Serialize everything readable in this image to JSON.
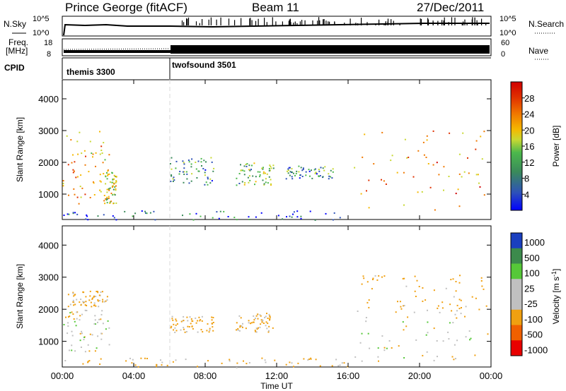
{
  "header": {
    "station": "Prince George (fitACF)",
    "beam": "Beam 11",
    "date": "27/Dec/2011"
  },
  "nsky_panel": {
    "left_label": "N.Sky",
    "left_ticks": [
      "10^5",
      "10^0"
    ],
    "right_ticks": [
      "10^5",
      "10^0"
    ],
    "right_label": "N.Search"
  },
  "freq_panel": {
    "label_line1": "Freq.",
    "label_line2": "[MHz]",
    "left_ticks": [
      "18",
      "8"
    ],
    "right_ticks": [
      "60",
      "0"
    ],
    "right_label": "Nave"
  },
  "cpid_panel": {
    "label": "CPID",
    "programs": [
      "themis 3300",
      "twofsound 3501"
    ]
  },
  "chart_data": [
    {
      "type": "heatmap",
      "title": "",
      "xlabel": "",
      "ylabel": "Slant Range [km]",
      "ylim": [
        200,
        4600
      ],
      "yticks": [
        "1000",
        "2000",
        "3000",
        "4000"
      ],
      "colorbar": {
        "label": "Power [dB]",
        "range": [
          0,
          32
        ],
        "ticks": [
          "4",
          "8",
          "12",
          "16",
          "20",
          "24",
          "28"
        ],
        "colors": [
          "#0000ff",
          "#2e52b8",
          "#3a8a5a",
          "#4cb84c",
          "#c8d832",
          "#f5b800",
          "#f07800",
          "#e03000",
          "#d00000"
        ]
      },
      "scatter_regions": [
        {
          "t_start": 0.0,
          "t_end": 2.6,
          "r_min": 700,
          "r_max": 3000,
          "value": 20
        },
        {
          "t_start": 2.3,
          "t_end": 3.0,
          "r_min": 700,
          "r_max": 1800,
          "value": 16
        },
        {
          "t_start": 6.0,
          "t_end": 8.5,
          "r_min": 1300,
          "r_max": 2200,
          "value": 10
        },
        {
          "t_start": 9.7,
          "t_end": 11.8,
          "r_min": 1300,
          "r_max": 2000,
          "value": 12
        },
        {
          "t_start": 12.5,
          "t_end": 15.3,
          "r_min": 1500,
          "r_max": 1900,
          "value": 10
        },
        {
          "t_start": 16.3,
          "t_end": 23.8,
          "r_min": 500,
          "r_max": 3100,
          "value": 22
        },
        {
          "t_start": 0.0,
          "t_end": 16.0,
          "r_min": 200,
          "r_max": 500,
          "value": 6
        }
      ]
    },
    {
      "type": "heatmap",
      "title": "",
      "xlabel": "Time UT",
      "ylabel": "Slant Range [km]",
      "xlim": [
        0,
        24
      ],
      "ylim": [
        200,
        4600
      ],
      "xticks": [
        "00:00",
        "04:00",
        "08:00",
        "12:00",
        "16:00",
        "20:00",
        "00:00"
      ],
      "yticks": [
        "1000",
        "2000",
        "3000",
        "4000"
      ],
      "colorbar": {
        "label": "Velocity [m s^-1]",
        "ticks": [
          "1000",
          "500",
          "100",
          "25",
          "-25",
          "-100",
          "-500",
          "-1000"
        ],
        "colors": [
          "#1a3fbf",
          "#3c8a4c",
          "#56c838",
          "#c0c0c0",
          "#c0c0c0",
          "#f0a010",
          "#f06000",
          "#e80000"
        ]
      },
      "scatter_regions": [
        {
          "t_start": 0.0,
          "t_end": 2.6,
          "r_min": 700,
          "r_max": 2000,
          "value": 0
        },
        {
          "t_start": 0.3,
          "t_end": 2.5,
          "r_min": 2100,
          "r_max": 2600,
          "value": -100
        },
        {
          "t_start": 6.0,
          "t_end": 8.5,
          "r_min": 1300,
          "r_max": 1800,
          "value": -100
        },
        {
          "t_start": 9.7,
          "t_end": 11.8,
          "r_min": 1300,
          "r_max": 1900,
          "value": -80
        },
        {
          "t_start": 16.3,
          "t_end": 23.8,
          "r_min": 400,
          "r_max": 2000,
          "value": 0
        },
        {
          "t_start": 16.5,
          "t_end": 23.8,
          "r_min": 2000,
          "r_max": 3100,
          "value": -150
        },
        {
          "t_start": 0.0,
          "t_end": 16.0,
          "r_min": 200,
          "r_max": 500,
          "value": -100
        }
      ]
    }
  ]
}
